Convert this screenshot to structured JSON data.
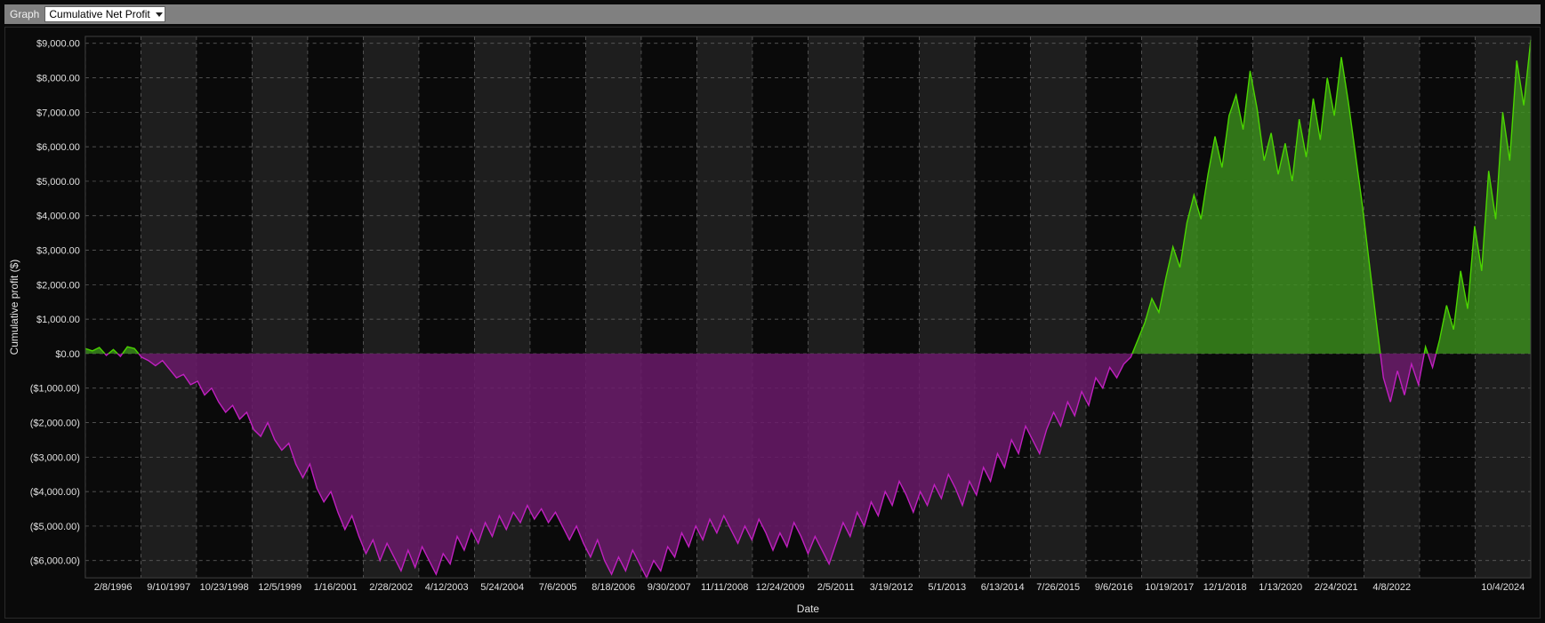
{
  "toolbar": {
    "label": "Graph",
    "select_value": "Cumulative Net Profit"
  },
  "chart": {
    "type": "area",
    "xlabel": "Date",
    "ylabel": "Cumulative profit ($)",
    "background_color": "#0a0a0a",
    "plot_alt_band_color": "#1e1e1e",
    "grid_color": "#6a6a6a",
    "grid_dash": "4 4",
    "axis_text_color": "#e0e0e0",
    "positive_stroke": "#4bd500",
    "positive_fill": "#3f9a1e",
    "positive_fill_opacity": 0.75,
    "negative_stroke": "#c020c0",
    "negative_fill": "#6a1a6a",
    "negative_fill_opacity": 0.85,
    "line_width": 1.4,
    "label_fontsize": 11,
    "title_fontsize": 12,
    "ylim": [
      -6500,
      9200
    ],
    "ytick_step": 1000,
    "yticks": [
      {
        "v": 9000,
        "label": "$9,000.00"
      },
      {
        "v": 8000,
        "label": "$8,000.00"
      },
      {
        "v": 7000,
        "label": "$7,000.00"
      },
      {
        "v": 6000,
        "label": "$6,000.00"
      },
      {
        "v": 5000,
        "label": "$5,000.00"
      },
      {
        "v": 4000,
        "label": "$4,000.00"
      },
      {
        "v": 3000,
        "label": "$3,000.00"
      },
      {
        "v": 2000,
        "label": "$2,000.00"
      },
      {
        "v": 1000,
        "label": "$1,000.00"
      },
      {
        "v": 0,
        "label": "$0.00"
      },
      {
        "v": -1000,
        "label": "($1,000.00)"
      },
      {
        "v": -2000,
        "label": "($2,000.00)"
      },
      {
        "v": -3000,
        "label": "($3,000.00)"
      },
      {
        "v": -4000,
        "label": "($4,000.00)"
      },
      {
        "v": -5000,
        "label": "($5,000.00)"
      },
      {
        "v": -6000,
        "label": "($6,000.00)"
      }
    ],
    "xticks": [
      "2/8/1996",
      "9/10/1997",
      "10/23/1998",
      "12/5/1999",
      "1/16/2001",
      "2/28/2002",
      "4/12/2003",
      "5/24/2004",
      "7/6/2005",
      "8/18/2006",
      "9/30/2007",
      "11/11/2008",
      "12/24/2009",
      "2/5/2011",
      "3/19/2012",
      "5/1/2013",
      "6/13/2014",
      "7/26/2015",
      "9/6/2016",
      "10/19/2017",
      "12/1/2018",
      "1/13/2020",
      "2/24/2021",
      "4/8/2022",
      "10/4/2024"
    ],
    "xtick_gap_after": 23,
    "n_xintervals": 26,
    "values": [
      150,
      80,
      180,
      -50,
      120,
      -80,
      200,
      150,
      -100,
      -200,
      -350,
      -200,
      -450,
      -700,
      -600,
      -900,
      -800,
      -1200,
      -1000,
      -1400,
      -1700,
      -1500,
      -1900,
      -1700,
      -2200,
      -2400,
      -2000,
      -2500,
      -2800,
      -2600,
      -3200,
      -3600,
      -3200,
      -3900,
      -4300,
      -4000,
      -4600,
      -5100,
      -4700,
      -5300,
      -5800,
      -5400,
      -6000,
      -5500,
      -5900,
      -6300,
      -5700,
      -6200,
      -5600,
      -6000,
      -6400,
      -5800,
      -6100,
      -5300,
      -5700,
      -5100,
      -5500,
      -4900,
      -5300,
      -4700,
      -5100,
      -4600,
      -4900,
      -4400,
      -4800,
      -4500,
      -4900,
      -4600,
      -5000,
      -5400,
      -5000,
      -5500,
      -5900,
      -5400,
      -6000,
      -6400,
      -5900,
      -6300,
      -5700,
      -6100,
      -6500,
      -6000,
      -6300,
      -5600,
      -5900,
      -5200,
      -5600,
      -5000,
      -5400,
      -4800,
      -5200,
      -4700,
      -5100,
      -5500,
      -5000,
      -5400,
      -4800,
      -5200,
      -5700,
      -5200,
      -5600,
      -4900,
      -5300,
      -5800,
      -5300,
      -5700,
      -6100,
      -5500,
      -4900,
      -5300,
      -4600,
      -5000,
      -4300,
      -4700,
      -4000,
      -4400,
      -3700,
      -4100,
      -4600,
      -4000,
      -4400,
      -3800,
      -4200,
      -3500,
      -3900,
      -4400,
      -3700,
      -4100,
      -3300,
      -3700,
      -2900,
      -3300,
      -2500,
      -2900,
      -2100,
      -2500,
      -2900,
      -2200,
      -1700,
      -2100,
      -1400,
      -1800,
      -1100,
      -1500,
      -700,
      -1000,
      -400,
      -700,
      -300,
      -100,
      400,
      900,
      1600,
      1200,
      2200,
      3100,
      2500,
      3800,
      4600,
      3900,
      5200,
      6300,
      5400,
      6900,
      7500,
      6500,
      8200,
      7100,
      5600,
      6400,
      5200,
      6100,
      5000,
      6800,
      5700,
      7400,
      6200,
      8000,
      6900,
      8600,
      7300,
      5800,
      4300,
      2600,
      900,
      -700,
      -1400,
      -500,
      -1200,
      -300,
      -900,
      200,
      -400,
      400,
      1400,
      700,
      2400,
      1300,
      3700,
      2400,
      5300,
      3900,
      7000,
      5600,
      8500,
      7200,
      9100
    ]
  }
}
